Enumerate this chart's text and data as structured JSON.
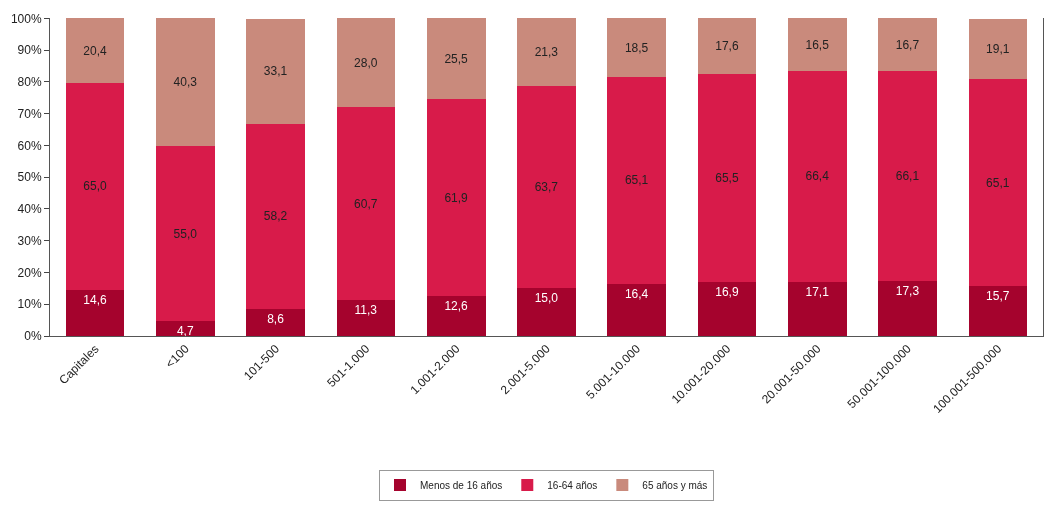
{
  "chart_data": {
    "type": "bar",
    "stacked": true,
    "categories": [
      "Capitales",
      "<100",
      "101-500",
      "501-1.000",
      "1.001-2.000",
      "2.001-5.000",
      "5.001-10.000",
      "10.001-20.000",
      "20.001-50.000",
      "50.001-100.000",
      "100.001-500.000"
    ],
    "series": [
      {
        "name": "Menos de 16 años",
        "color": "#a5032d",
        "values": [
          14.6,
          4.7,
          8.6,
          11.3,
          12.6,
          15.0,
          16.4,
          16.9,
          17.1,
          17.3,
          15.7
        ],
        "value_labels": [
          "14,6",
          "4,7",
          "8,6",
          "11,3",
          "12,6",
          "15,0",
          "16,4",
          "16,9",
          "17,1",
          "17,3",
          "15,7"
        ]
      },
      {
        "name": "16-64 años",
        "color": "#d81b4a",
        "values": [
          65.0,
          55.0,
          58.2,
          60.7,
          61.9,
          63.7,
          65.1,
          65.5,
          66.4,
          66.1,
          65.1
        ],
        "value_labels": [
          "65,0",
          "55,0",
          "58,2",
          "60,7",
          "61,9",
          "63,7",
          "65,1",
          "65,5",
          "66,4",
          "66,1",
          "65,1"
        ]
      },
      {
        "name": "65 años y más",
        "color": "#c98a7c",
        "values": [
          20.4,
          40.3,
          33.1,
          28.0,
          25.5,
          21.3,
          18.5,
          17.6,
          16.5,
          16.7,
          19.1
        ],
        "value_labels": [
          "20,4",
          "40,3",
          "33,1",
          "28,0",
          "25,5",
          "21,3",
          "18,5",
          "17,6",
          "16,5",
          "16,7",
          "19,1"
        ]
      }
    ],
    "ylim": [
      0,
      100.1
    ],
    "yticks": [
      {
        "value": 0,
        "label": "0%"
      },
      {
        "value": 10,
        "label": "10%"
      },
      {
        "value": 20,
        "label": "20%"
      },
      {
        "value": 30,
        "label": "30%"
      },
      {
        "value": 40,
        "label": "40%"
      },
      {
        "value": 50,
        "label": "50%"
      },
      {
        "value": 60,
        "label": "60%"
      },
      {
        "value": 70,
        "label": "70%"
      },
      {
        "value": 80,
        "label": "80%"
      },
      {
        "value": 90,
        "label": "90%"
      },
      {
        "value": 100,
        "label": "100%"
      }
    ],
    "legend": "bottom"
  }
}
